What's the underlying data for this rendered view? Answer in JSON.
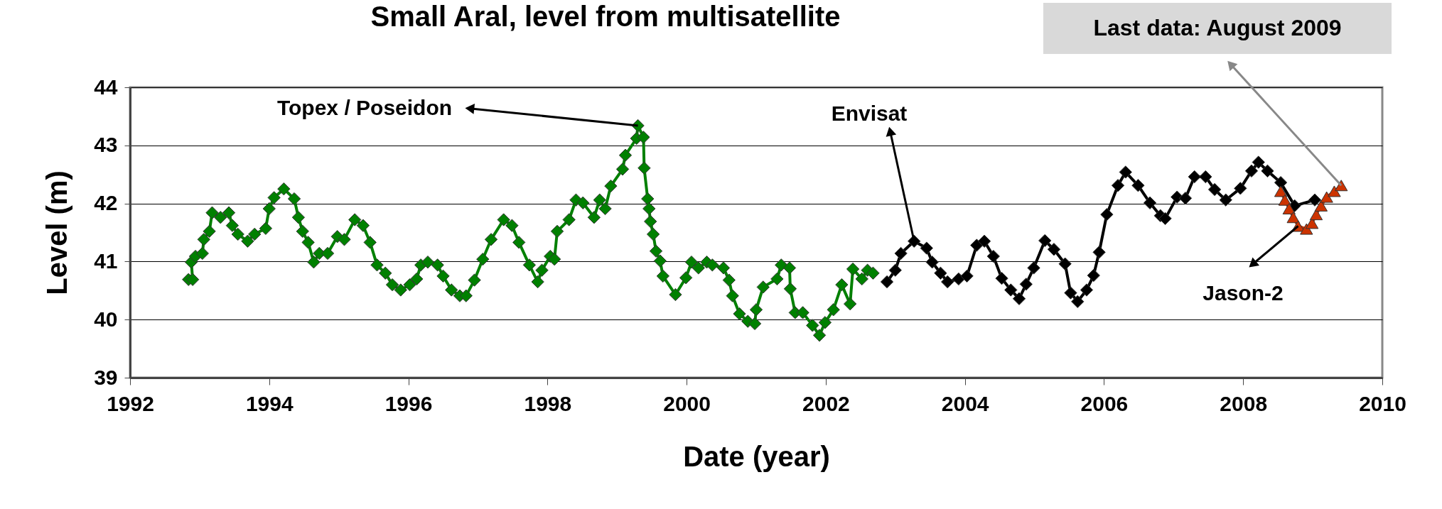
{
  "chart_data": {
    "type": "line",
    "title": "Small Aral, level from multisatellite",
    "xlabel": "Date (year)",
    "ylabel": "Level (m)",
    "xlim": [
      1992,
      2010
    ],
    "xticks": [
      1992,
      1994,
      1996,
      1998,
      2000,
      2002,
      2004,
      2006,
      2008,
      2010
    ],
    "ylim": [
      39,
      44
    ],
    "yticks": [
      39,
      40,
      41,
      42,
      43,
      44
    ],
    "grid": "y",
    "legend": false,
    "line_style": "solid",
    "annotations": [
      {
        "text": "Topex / Poseidon",
        "x": 1999.3,
        "y": 43.34
      },
      {
        "text": "Envisat",
        "x": 2003.27,
        "y": 41.35
      },
      {
        "text": "Jason-2",
        "x": 2008.79,
        "y": 41.61
      },
      {
        "text": "Last data: August 2009",
        "x": 2009.41,
        "y": 42.31
      }
    ],
    "series": [
      {
        "color": "#008000",
        "marker": "diamond",
        "x": [
          1992.84,
          1992.9,
          1992.88,
          1992.94,
          1993.04,
          1993.06,
          1993.14,
          1993.18,
          1993.3,
          1993.42,
          1993.47,
          1993.55,
          1993.69,
          1993.79,
          1993.95,
          1994.0,
          1994.07,
          1994.21,
          1994.36,
          1994.42,
          1994.48,
          1994.56,
          1994.64,
          1994.72,
          1994.84,
          1994.98,
          1995.08,
          1995.23,
          1995.35,
          1995.45,
          1995.55,
          1995.67,
          1995.77,
          1995.89,
          1996.02,
          1996.12,
          1996.18,
          1996.28,
          1996.42,
          1996.5,
          1996.62,
          1996.74,
          1996.83,
          1996.95,
          1997.07,
          1997.19,
          1997.37,
          1997.49,
          1997.59,
          1997.74,
          1997.86,
          1997.92,
          1998.04,
          1998.1,
          1998.14,
          1998.31,
          1998.41,
          1998.51,
          1998.67,
          1998.75,
          1998.83,
          1998.91,
          1999.08,
          1999.12,
          1999.28,
          1999.3,
          1999.38,
          1999.39,
          1999.44,
          1999.46,
          1999.48,
          1999.52,
          1999.56,
          1999.62,
          1999.66,
          1999.84,
          1999.99,
          2000.07,
          2000.17,
          2000.29,
          2000.37,
          2000.53,
          2000.61,
          2000.66,
          2000.76,
          2000.88,
          2000.98,
          2001.0,
          2001.1,
          2001.3,
          2001.36,
          2001.48,
          2001.49,
          2001.56,
          2001.67,
          2001.81,
          2001.91,
          2001.99,
          2002.11,
          2002.23,
          2002.35,
          2002.39,
          2002.52,
          2002.6,
          2002.68
        ],
        "values": [
          40.69,
          40.69,
          40.99,
          41.09,
          41.14,
          41.38,
          41.52,
          41.84,
          41.76,
          41.84,
          41.62,
          41.47,
          41.35,
          41.47,
          41.57,
          41.91,
          42.1,
          42.25,
          42.08,
          41.76,
          41.52,
          41.33,
          40.99,
          41.14,
          41.14,
          41.43,
          41.38,
          41.72,
          41.62,
          41.33,
          40.94,
          40.8,
          40.6,
          40.51,
          40.6,
          40.7,
          40.94,
          40.99,
          40.94,
          40.75,
          40.51,
          40.41,
          40.41,
          40.68,
          41.04,
          41.38,
          41.72,
          41.62,
          41.33,
          40.94,
          40.65,
          40.85,
          41.09,
          41.04,
          41.52,
          41.72,
          42.06,
          42.01,
          41.76,
          42.06,
          41.91,
          42.3,
          42.59,
          42.83,
          43.12,
          43.34,
          43.14,
          42.61,
          42.08,
          41.91,
          41.69,
          41.47,
          41.18,
          41.01,
          40.75,
          40.43,
          40.72,
          40.99,
          40.89,
          40.99,
          40.94,
          40.89,
          40.68,
          40.41,
          40.1,
          39.97,
          39.93,
          40.17,
          40.56,
          40.7,
          40.94,
          40.89,
          40.53,
          40.12,
          40.12,
          39.9,
          39.73,
          39.95,
          40.17,
          40.6,
          40.27,
          40.87,
          40.7,
          40.85,
          40.8
        ]
      },
      {
        "color": "#000000",
        "marker": "diamond",
        "x": [
          2002.88,
          2003.0,
          2003.08,
          2003.27,
          2003.45,
          2003.53,
          2003.65,
          2003.75,
          2003.91,
          2004.03,
          2004.17,
          2004.28,
          2004.41,
          2004.53,
          2004.66,
          2004.78,
          2004.88,
          2004.99,
          2005.15,
          2005.28,
          2005.44,
          2005.52,
          2005.62,
          2005.75,
          2005.85,
          2005.93,
          2006.04,
          2006.2,
          2006.31,
          2006.49,
          2006.66,
          2006.81,
          2006.88,
          2007.05,
          2007.17,
          2007.3,
          2007.46,
          2007.59,
          2007.75,
          2007.96,
          2008.12,
          2008.22,
          2008.35,
          2008.54,
          2008.74,
          2009.03
        ],
        "values": [
          40.65,
          40.85,
          41.14,
          41.35,
          41.23,
          40.99,
          40.8,
          40.65,
          40.7,
          40.75,
          41.28,
          41.35,
          41.09,
          40.71,
          40.51,
          40.36,
          40.61,
          40.89,
          41.36,
          41.21,
          40.96,
          40.46,
          40.31,
          40.51,
          40.76,
          41.16,
          41.81,
          42.31,
          42.54,
          42.31,
          42.01,
          41.79,
          41.74,
          42.11,
          42.09,
          42.46,
          42.46,
          42.24,
          42.06,
          42.26,
          42.56,
          42.71,
          42.56,
          42.36,
          41.96,
          42.06
        ]
      },
      {
        "color": "#cc3300",
        "marker": "triangle",
        "x": [
          2008.54,
          2008.6,
          2008.66,
          2008.72,
          2008.79,
          2008.91,
          2008.99,
          2009.05,
          2009.12,
          2009.2,
          2009.31,
          2009.41
        ],
        "values": [
          42.21,
          42.06,
          41.91,
          41.76,
          41.61,
          41.56,
          41.66,
          41.81,
          41.96,
          42.11,
          42.21,
          42.31
        ]
      }
    ]
  }
}
